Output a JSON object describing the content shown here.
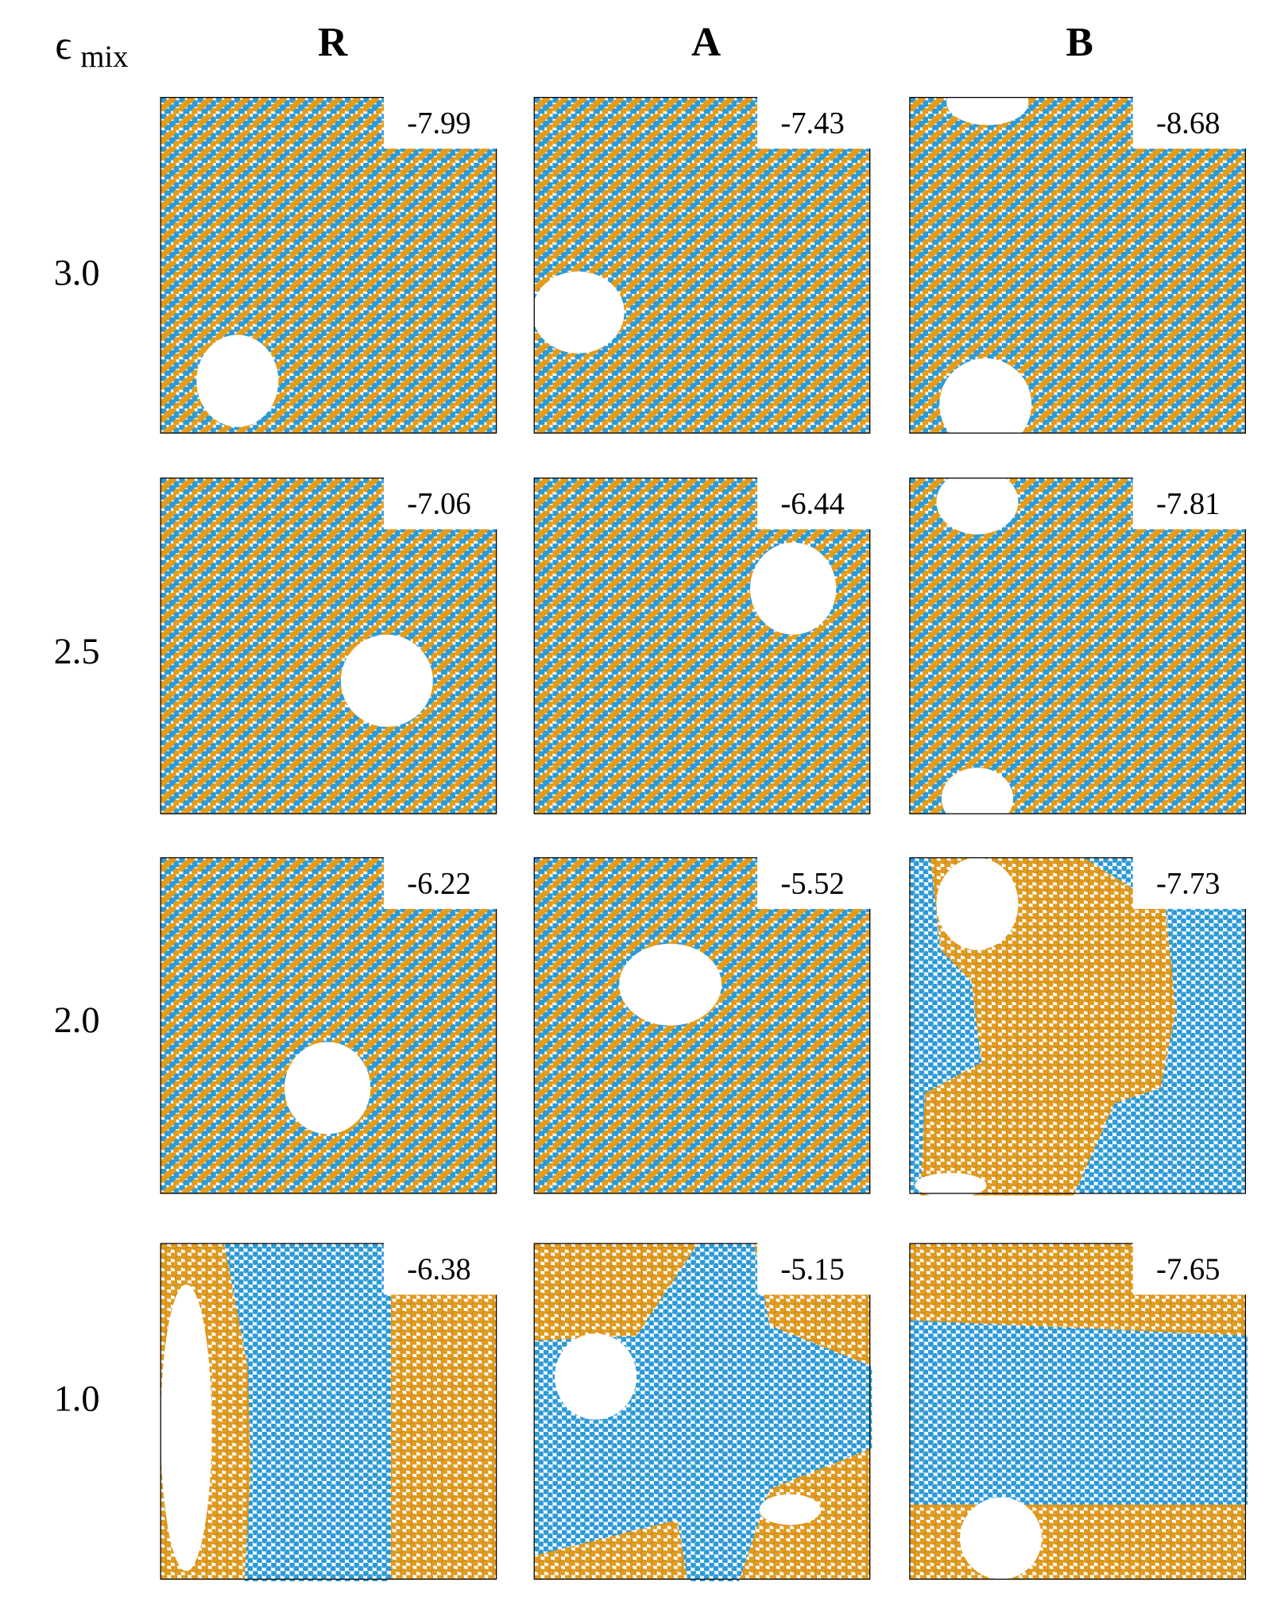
{
  "header": {
    "symbol": "ϵ",
    "subscript": "mix"
  },
  "columns": [
    "R",
    "A",
    "B"
  ],
  "rows": [
    {
      "label": "3.0",
      "energies": [
        "-7.99",
        "-7.43",
        "-8.68"
      ]
    },
    {
      "label": "2.5",
      "energies": [
        "-7.06",
        "-6.44",
        "-7.81"
      ]
    },
    {
      "label": "2.0",
      "energies": [
        "-6.22",
        "-5.52",
        "-7.73"
      ]
    },
    {
      "label": "1.0",
      "energies": [
        "-6.38",
        "-5.15",
        "-7.65"
      ]
    }
  ]
}
